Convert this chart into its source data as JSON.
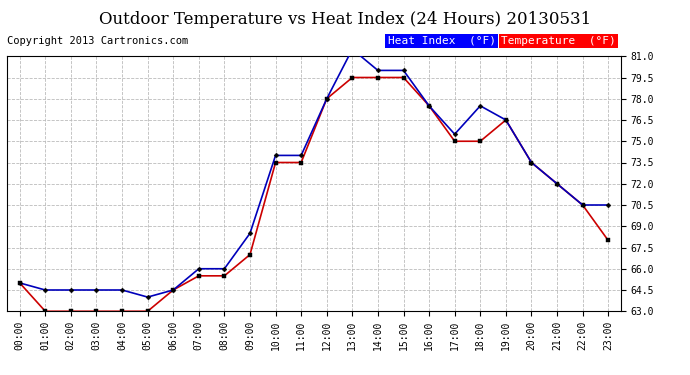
{
  "title": "Outdoor Temperature vs Heat Index (24 Hours) 20130531",
  "copyright": "Copyright 2013 Cartronics.com",
  "legend_heat": "Heat Index  (°F)",
  "legend_temp": "Temperature  (°F)",
  "hours": [
    "00:00",
    "01:00",
    "02:00",
    "03:00",
    "04:00",
    "05:00",
    "06:00",
    "07:00",
    "08:00",
    "09:00",
    "10:00",
    "11:00",
    "12:00",
    "13:00",
    "14:00",
    "15:00",
    "16:00",
    "17:00",
    "18:00",
    "19:00",
    "20:00",
    "21:00",
    "22:00",
    "23:00"
  ],
  "heat_index": [
    65.0,
    64.5,
    64.5,
    64.5,
    64.5,
    64.0,
    64.5,
    66.0,
    66.0,
    68.5,
    74.0,
    74.0,
    78.0,
    81.5,
    80.0,
    80.0,
    77.5,
    75.5,
    77.5,
    76.5,
    73.5,
    72.0,
    70.5,
    70.5
  ],
  "temperature": [
    65.0,
    63.0,
    63.0,
    63.0,
    63.0,
    63.0,
    64.5,
    65.5,
    65.5,
    67.0,
    73.5,
    73.5,
    78.0,
    79.5,
    79.5,
    79.5,
    77.5,
    75.0,
    75.0,
    76.5,
    73.5,
    72.0,
    70.5,
    68.0
  ],
  "ylim": [
    63.0,
    81.0
  ],
  "yticks": [
    63.0,
    64.5,
    66.0,
    67.5,
    69.0,
    70.5,
    72.0,
    73.5,
    75.0,
    76.5,
    78.0,
    79.5,
    81.0
  ],
  "heat_color": "#0000bb",
  "temp_color": "#cc0000",
  "bg_color": "#ffffff",
  "grid_color": "#bbbbbb",
  "title_fontsize": 12,
  "copyright_fontsize": 7.5,
  "legend_fontsize": 8,
  "tick_fontsize": 7
}
